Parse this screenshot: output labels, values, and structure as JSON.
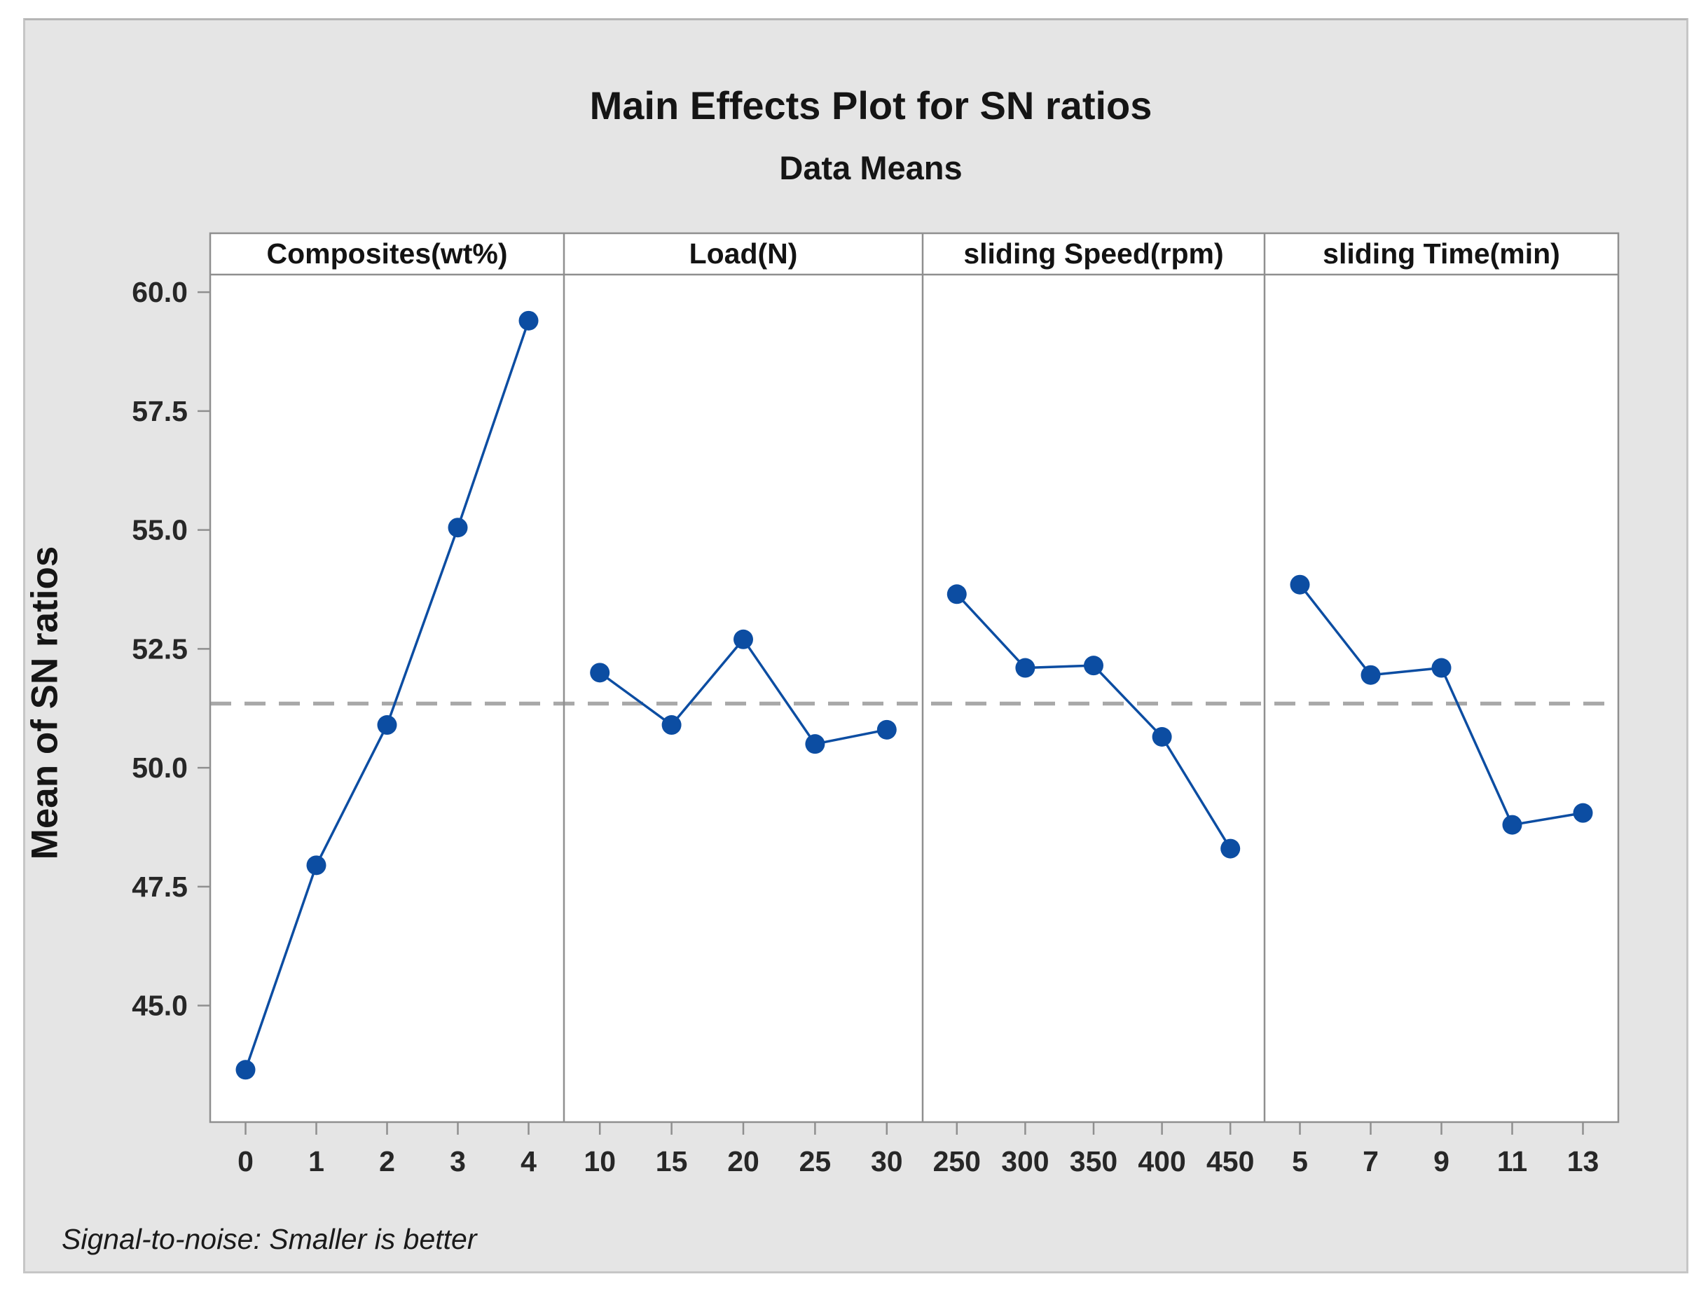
{
  "window": {
    "outer_background": "#ffffff",
    "figure_background": "#e5e5e5",
    "figure_border": "#c6c6c6"
  },
  "chart_data": {
    "type": "line",
    "title": "Main Effects Plot for SN ratios",
    "subtitle": "Data Means",
    "ylabel": "Mean of SN ratios",
    "footnote": "Signal-to-noise: Smaller is better",
    "ylim": [
      42.55,
      60.37
    ],
    "yticks": [
      60.0,
      57.5,
      55.0,
      52.5,
      50.0,
      47.5,
      45.0
    ],
    "ytick_labels": [
      "60.0",
      "57.5",
      "55.0",
      "52.5",
      "50.0",
      "47.5",
      "45.0"
    ],
    "reference_line": 51.35,
    "reference_line_style": "dashed",
    "grid": false,
    "legend": "none",
    "colors": {
      "series": "#0c4da2",
      "reference": "#a8a8a8",
      "panel_border": "#8f8f8f",
      "panel_background": "#ffffff",
      "tick_text": "#272727",
      "strip_text": "#131313"
    },
    "panels": [
      {
        "label": "Composites(wt%)",
        "categories": [
          "0",
          "1",
          "2",
          "3",
          "4"
        ],
        "values": [
          43.65,
          47.95,
          50.9,
          55.05,
          59.4
        ]
      },
      {
        "label": "Load(N)",
        "categories": [
          "10",
          "15",
          "20",
          "25",
          "30"
        ],
        "values": [
          52.0,
          50.9,
          52.7,
          50.5,
          50.8
        ]
      },
      {
        "label": "sliding  Speed(rpm)",
        "categories": [
          "250",
          "300",
          "350",
          "400",
          "450"
        ],
        "values": [
          53.65,
          52.1,
          52.15,
          50.65,
          48.3
        ]
      },
      {
        "label": "sliding Time(min)",
        "categories": [
          "5",
          "7",
          "9",
          "11",
          "13"
        ],
        "values": [
          53.85,
          51.95,
          52.1,
          48.8,
          49.05
        ]
      }
    ]
  }
}
